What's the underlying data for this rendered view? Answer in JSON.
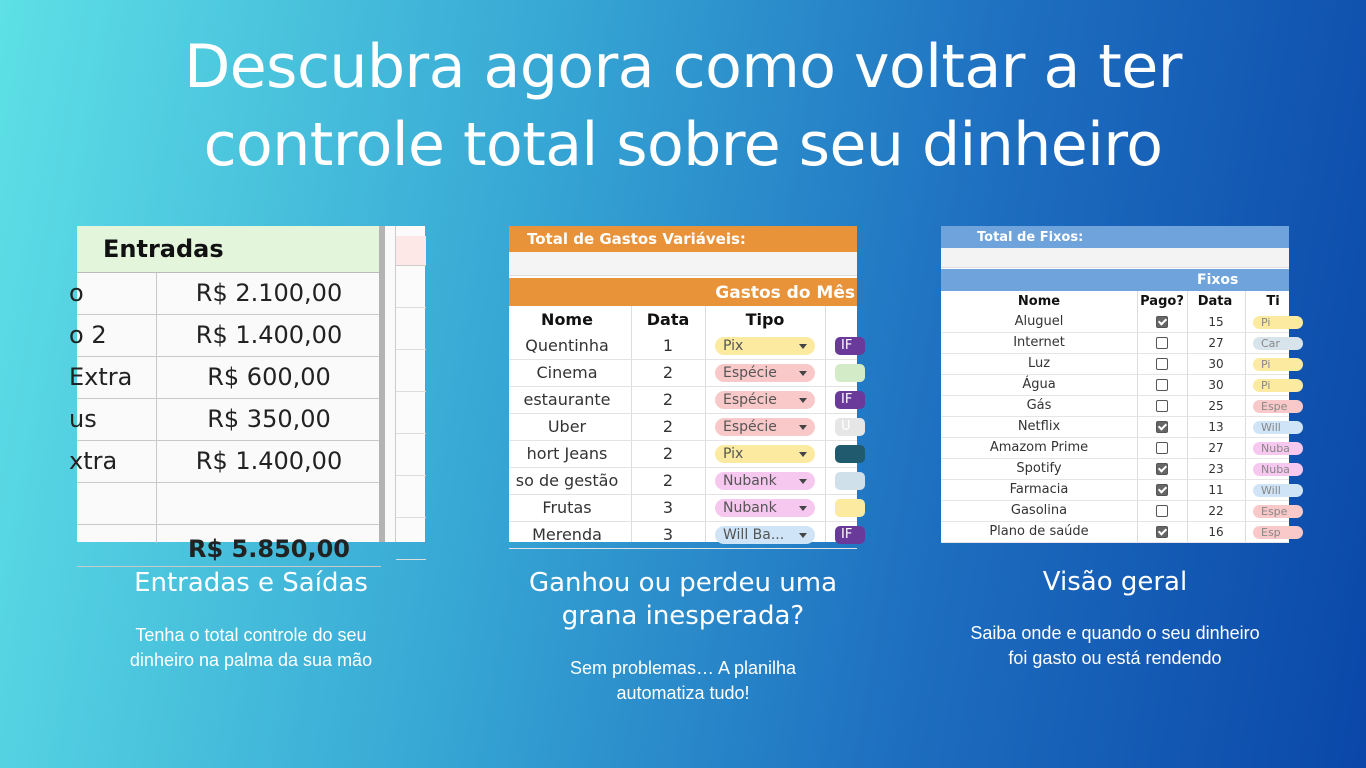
{
  "headline": {
    "line1": "Descubra agora como voltar a ter",
    "line2": "controle total sobre seu dinheiro"
  },
  "columns": [
    {
      "title_lines": [
        "Entradas e Saídas"
      ],
      "desc_lines": [
        "Tenha o total controle do seu",
        "dinheiro na palma da sua mão"
      ]
    },
    {
      "title_lines": [
        "Ganhou ou perdeu uma",
        "grana inesperada?"
      ],
      "desc_lines": [
        "Sem problemas… A planilha",
        "automatiza tudo!"
      ]
    },
    {
      "title_lines": [
        "Visão geral"
      ],
      "desc_lines": [
        "Saiba onde e quando o seu dinheiro",
        "foi gasto ou está rendendo"
      ]
    }
  ],
  "card1": {
    "header": "Entradas",
    "rows": [
      {
        "label": "o",
        "value": "R$ 2.100,00"
      },
      {
        "label": "o 2",
        "value": "R$ 1.400,00"
      },
      {
        "label": "Extra",
        "value": "R$ 600,00"
      },
      {
        "label": "us",
        "value": "R$ 350,00"
      },
      {
        "label": "xtra",
        "value": "R$ 1.400,00"
      },
      {
        "label": "",
        "value": ""
      },
      {
        "label": "",
        "value": "R$ 5.850,00"
      }
    ]
  },
  "card2": {
    "title": "Total de Gastos Variáveis:",
    "section": "Gastos do Mês",
    "headers": {
      "nome": "Nome",
      "data": "Data",
      "tipo": "Tipo"
    },
    "rows": [
      {
        "nome": "Quentinha",
        "data": "1",
        "tipo": "Pix",
        "color": "#fbeaa0",
        "tag": "IF",
        "tagcolor": "#6a3a9a"
      },
      {
        "nome": "Cinema",
        "data": "2",
        "tipo": "Espécie",
        "color": "#f9c9c9",
        "tag": "",
        "tagcolor": "#d3ecc7"
      },
      {
        "nome": "estaurante",
        "data": "2",
        "tipo": "Espécie",
        "color": "#f9c9c9",
        "tag": "IF",
        "tagcolor": "#6a3a9a"
      },
      {
        "nome": "Uber",
        "data": "2",
        "tipo": "Espécie",
        "color": "#f9c9c9",
        "tag": "U",
        "tagcolor": "#e6e6e6"
      },
      {
        "nome": "hort Jeans",
        "data": "2",
        "tipo": "Pix",
        "color": "#fbeaa0",
        "tag": "",
        "tagcolor": "#1f5a6e"
      },
      {
        "nome": "so de gestão",
        "data": "2",
        "tipo": "Nubank",
        "color": "#f6c7ef",
        "tag": "",
        "tagcolor": "#cfe0ea"
      },
      {
        "nome": "Frutas",
        "data": "3",
        "tipo": "Nubank",
        "color": "#f6c7ef",
        "tag": "",
        "tagcolor": "#fbeaa0"
      },
      {
        "nome": "Merenda",
        "data": "3",
        "tipo": "Will Ba...",
        "color": "#cfe4f6",
        "tag": "IF",
        "tagcolor": "#6a3a9a"
      }
    ]
  },
  "card3": {
    "title": "Total de Fixos:",
    "section": "Fixos",
    "headers": {
      "nome": "Nome",
      "pago": "Pago?",
      "data": "Data",
      "tipo": "Ti"
    },
    "rows": [
      {
        "nome": "Aluguel",
        "pago": true,
        "data": "15",
        "tipo": "Pi",
        "color": "#fbeaa0"
      },
      {
        "nome": "Internet",
        "pago": false,
        "data": "27",
        "tipo": "Car",
        "color": "#d8e4ec"
      },
      {
        "nome": "Luz",
        "pago": false,
        "data": "30",
        "tipo": "Pi",
        "color": "#fbeaa0"
      },
      {
        "nome": "Água",
        "pago": false,
        "data": "30",
        "tipo": "Pi",
        "color": "#fbeaa0"
      },
      {
        "nome": "Gás",
        "pago": false,
        "data": "25",
        "tipo": "Espe",
        "color": "#f9c9c9"
      },
      {
        "nome": "Netflix",
        "pago": true,
        "data": "13",
        "tipo": "Will",
        "color": "#cfe4f6"
      },
      {
        "nome": "Amazom Prime",
        "pago": false,
        "data": "27",
        "tipo": "Nuba",
        "color": "#f6c7ef"
      },
      {
        "nome": "Spotify",
        "pago": true,
        "data": "23",
        "tipo": "Nuba",
        "color": "#f6c7ef"
      },
      {
        "nome": "Farmacia",
        "pago": true,
        "data": "11",
        "tipo": "Will",
        "color": "#cfe4f6"
      },
      {
        "nome": "Gasolina",
        "pago": false,
        "data": "22",
        "tipo": "Espe",
        "color": "#f9c9c9"
      },
      {
        "nome": "Plano de saúde",
        "pago": true,
        "data": "16",
        "tipo": "Esp",
        "color": "#f9c9c9"
      }
    ]
  }
}
